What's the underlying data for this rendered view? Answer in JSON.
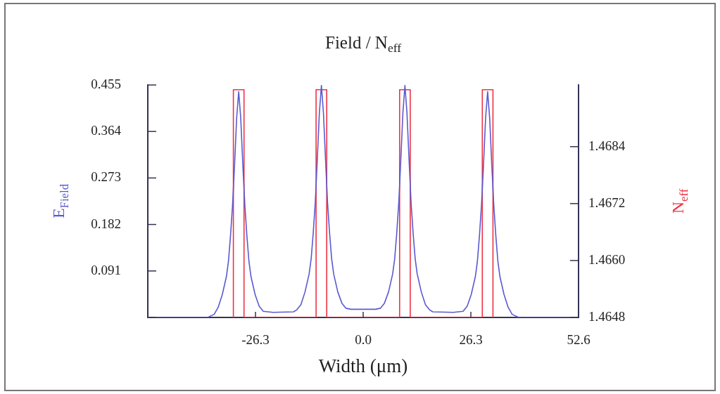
{
  "chart_data": {
    "type": "line",
    "title": "Field / N$_{eff}$",
    "xlabel": "Width (μm)",
    "ylabel": "E$_{Field}$",
    "y2label": "N$_{eff}$",
    "xlim": [
      -52.6,
      52.6
    ],
    "xticks": [
      {
        "value": -52.6,
        "label": null
      },
      -26.3,
      {
        "value": 0,
        "label": "0.0"
      },
      26.3,
      52.6
    ],
    "ylim": [
      0,
      0.455
    ],
    "yticks": [
      {
        "value": 0,
        "label": null
      },
      0.091,
      0.182,
      0.273,
      0.364,
      0.455
    ],
    "y2lim": [
      1.4648,
      1.4697
    ],
    "y2ticks": [
      1.4648,
      {
        "value": 1.466,
        "label": "1.4660"
      },
      1.4672,
      1.4684
    ],
    "marker": "none",
    "line_style": "solid",
    "series": [
      {
        "color": "#5a5ad0",
        "x": [
          -52.6,
          -38,
          -36.4,
          -35.4,
          -34.4,
          -33.4,
          -32.9,
          -32.4,
          -31.9,
          -31.4,
          -30.9,
          -30.4,
          -29.9,
          -29.4,
          -28.9,
          -28.4,
          -27.9,
          -27.4,
          -26.4,
          -25.4,
          -24.4,
          -22,
          -17,
          -16.2,
          -15.2,
          -14.2,
          -13.2,
          -12.7,
          -12.2,
          -11.7,
          -11.2,
          -10.7,
          -10.2,
          -9.7,
          -9.2,
          -8.7,
          -8.2,
          -7.7,
          -7.2,
          -6.2,
          -5.2,
          -4.2,
          -3,
          3,
          4.2,
          5.2,
          6.2,
          7.2,
          7.7,
          8.2,
          8.7,
          9.2,
          9.7,
          10.2,
          10.7,
          11.2,
          11.7,
          12.2,
          12.7,
          13.2,
          14.2,
          15.2,
          16.2,
          17,
          22,
          24.4,
          25.4,
          26.4,
          27.4,
          27.9,
          28.4,
          28.9,
          29.4,
          29.9,
          30.4,
          30.9,
          31.4,
          31.9,
          32.4,
          32.9,
          33.4,
          34.4,
          35.4,
          36.4,
          38,
          52.6
        ],
        "values": [
          0,
          0,
          0.006,
          0.02,
          0.045,
          0.08,
          0.11,
          0.16,
          0.22,
          0.3,
          0.39,
          0.442,
          0.39,
          0.3,
          0.22,
          0.16,
          0.11,
          0.08,
          0.045,
          0.022,
          0.012,
          0.01,
          0.011,
          0.015,
          0.025,
          0.05,
          0.085,
          0.115,
          0.165,
          0.225,
          0.31,
          0.4,
          0.454,
          0.4,
          0.31,
          0.225,
          0.165,
          0.115,
          0.085,
          0.05,
          0.028,
          0.018,
          0.016,
          0.016,
          0.018,
          0.028,
          0.05,
          0.085,
          0.115,
          0.165,
          0.225,
          0.31,
          0.4,
          0.454,
          0.4,
          0.31,
          0.225,
          0.165,
          0.115,
          0.085,
          0.05,
          0.025,
          0.015,
          0.011,
          0.01,
          0.012,
          0.022,
          0.045,
          0.08,
          0.11,
          0.16,
          0.22,
          0.3,
          0.39,
          0.442,
          0.39,
          0.3,
          0.22,
          0.16,
          0.11,
          0.08,
          0.045,
          0.02,
          0.006,
          0,
          0
        ]
      },
      {
        "color": "#ee3344",
        "axis": "y2",
        "x": [
          -31.7,
          -31.7,
          -29.1,
          -29.1,
          -11.5,
          -11.5,
          -8.9,
          -8.9,
          8.9,
          8.9,
          11.5,
          11.5,
          29.1,
          29.1,
          31.7,
          31.7
        ],
        "values": [
          1.4648,
          1.4696,
          1.4696,
          1.4648,
          1.4648,
          1.4696,
          1.4696,
          1.4648,
          1.4648,
          1.4696,
          1.4696,
          1.4648,
          1.4648,
          1.4696,
          1.4696,
          1.4648
        ]
      }
    ]
  }
}
